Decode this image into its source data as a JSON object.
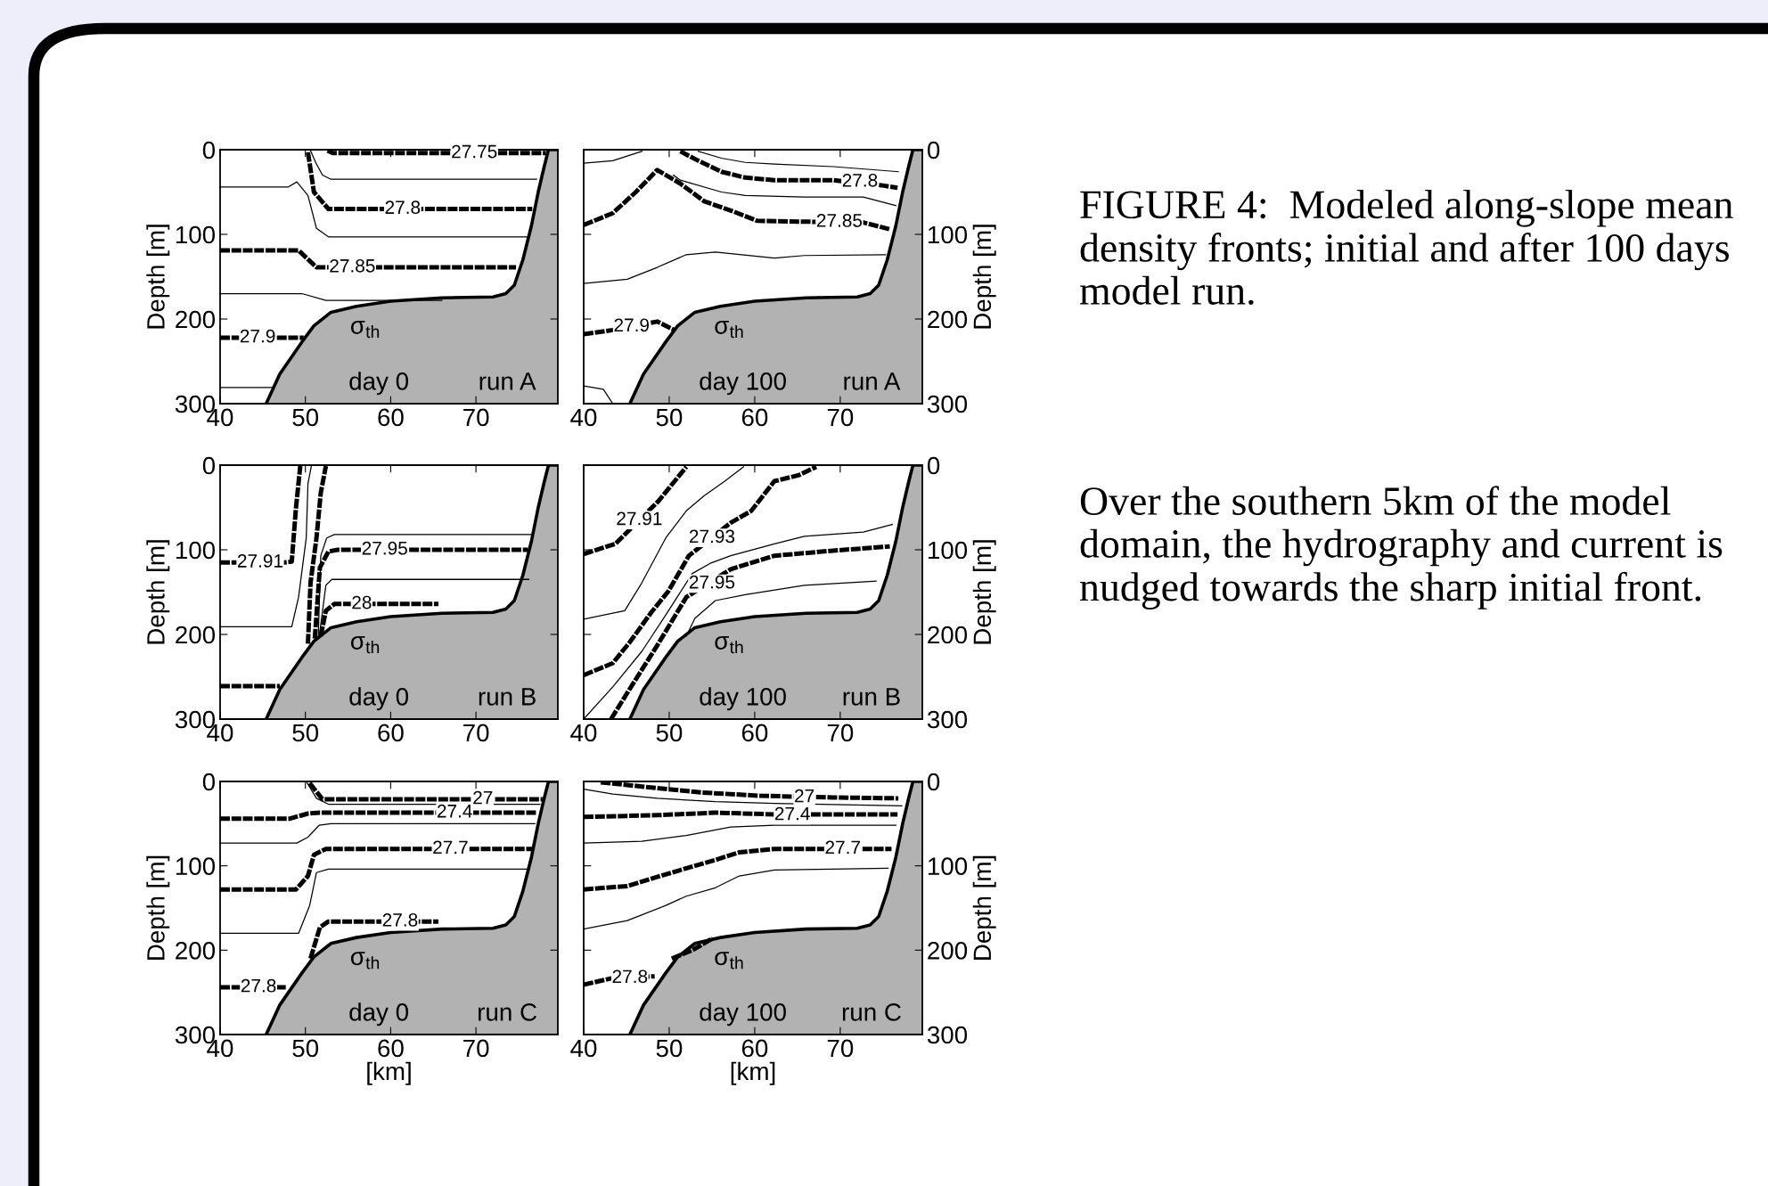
{
  "chart_data": [
    {
      "type": "line",
      "xlim": [
        40,
        79.6
      ],
      "ylim": [
        300,
        0
      ],
      "xticks": [
        40,
        50,
        60,
        70
      ],
      "yticks": [
        0,
        100,
        200,
        300
      ],
      "ylabel": "Depth [m]",
      "series": [
        {
          "color": "#000000",
          "line_style": "solid",
          "x": [
            45.4,
            47,
            49.6,
            51,
            53,
            56,
            60,
            66,
            72,
            73.5,
            74.5,
            75.5,
            76.5,
            77.3,
            78,
            78.5,
            79.6
          ],
          "values": [
            300,
            265,
            227,
            208,
            192,
            185,
            179,
            175,
            174,
            170,
            160,
            130,
            90,
            50,
            20,
            0,
            0
          ],
          "lower": [
            300,
            265,
            227,
            208,
            192,
            185,
            179,
            175,
            174,
            170,
            160,
            130,
            90,
            50,
            20,
            0,
            0
          ],
          "upper": [
            300,
            300,
            300,
            300,
            300,
            300,
            300,
            300,
            300,
            300,
            300,
            300,
            300,
            300,
            300,
            300,
            300
          ]
        },
        {
          "color": "#000000",
          "line_style": "dashed",
          "x": [
            52.6,
            53.2,
            78.2
          ],
          "values": [
            1,
            4,
            4
          ]
        },
        {
          "color": "#000000",
          "line_style": "solid",
          "x": [
            50.6,
            51.2,
            52,
            53,
            77.1
          ],
          "values": [
            1,
            15,
            30,
            35,
            35
          ]
        },
        {
          "color": "#000000",
          "line_style": "dashed",
          "x": [
            50.3,
            51,
            52.7,
            76.6
          ],
          "values": [
            3,
            50,
            70,
            70
          ]
        },
        {
          "color": "#000000",
          "line_style": "solid",
          "x": [
            40,
            48,
            49,
            50.3,
            51.3,
            52.7,
            76.1
          ],
          "values": [
            44,
            44,
            38,
            54,
            93,
            103,
            103
          ]
        },
        {
          "color": "#000000",
          "line_style": "dashed",
          "x": [
            40,
            49.2,
            51.3,
            74.7
          ],
          "values": [
            119,
            119,
            139,
            139
          ]
        },
        {
          "color": "#000000",
          "line_style": "solid",
          "x": [
            40,
            49.6,
            52.4,
            66
          ],
          "values": [
            170,
            170,
            178,
            178
          ]
        },
        {
          "color": "#000000",
          "line_style": "dashed",
          "x": [
            40,
            49.8
          ],
          "values": [
            222,
            222
          ]
        },
        {
          "color": "#000000",
          "line_style": "solid",
          "x": [
            40,
            46.1
          ],
          "values": [
            281,
            281
          ]
        }
      ],
      "annotations": [
        "σ$_{th}$",
        "day 0",
        "run A",
        {
          "text": "27.75",
          "x": 69.8,
          "y": 4
        },
        {
          "text": "27.8",
          "x": 61.4,
          "y": 70
        },
        {
          "text": "27.85",
          "x": 55.5,
          "y": 139
        },
        {
          "text": "27.9",
          "x": 44.4,
          "y": 222
        }
      ]
    },
    {
      "type": "line",
      "xlim": [
        40,
        79.6
      ],
      "ylim": [
        300,
        0
      ],
      "xticks": [
        40,
        50,
        60,
        70
      ],
      "yticks": [
        0,
        100,
        200,
        300
      ],
      "ylabel": "Depth [m]",
      "series": [
        {
          "color": "#000000",
          "line_style": "solid",
          "x": [
            45.4,
            47,
            49.6,
            51,
            53,
            56,
            60,
            66,
            72,
            73.5,
            74.5,
            75.5,
            76.5,
            77.3,
            78,
            78.5,
            79.6
          ],
          "values": [
            300,
            265,
            227,
            208,
            192,
            185,
            179,
            175,
            174,
            170,
            160,
            130,
            90,
            50,
            20,
            0,
            0
          ],
          "lower": [
            300,
            265,
            227,
            208,
            192,
            185,
            179,
            175,
            174,
            170,
            160,
            130,
            90,
            50,
            20,
            0,
            0
          ],
          "upper": [
            300,
            300,
            300,
            300,
            300,
            300,
            300,
            300,
            300,
            300,
            300,
            300,
            300,
            300,
            300,
            300,
            300
          ]
        },
        {
          "color": "#000000",
          "line_style": "solid",
          "x": [
            40,
            43.4,
            46.8
          ],
          "values": [
            16,
            13,
            2
          ]
        },
        {
          "color": "#000000",
          "line_style": "solid",
          "x": [
            53.4,
            56.1,
            58.9,
            62.3,
            69.2,
            76.8
          ],
          "values": [
            2,
            10,
            15,
            17,
            20,
            26
          ]
        },
        {
          "color": "#000000",
          "line_style": "dashed",
          "x": [
            51.3,
            53.4,
            56.1,
            58.9,
            62.3,
            69.2,
            74.8,
            76.7
          ],
          "values": [
            2,
            13,
            26,
            33,
            36,
            36,
            42,
            45
          ]
        },
        {
          "color": "#000000",
          "line_style": "solid",
          "x": [
            50.5,
            51.3,
            56.1,
            58.9,
            65.8,
            72.7,
            76.5
          ],
          "values": [
            30,
            36,
            50,
            54,
            56,
            56,
            66
          ]
        },
        {
          "color": "#000000",
          "line_style": "dashed",
          "x": [
            40,
            43.4,
            46.1,
            48.6,
            51.3,
            54.1,
            57.5,
            60.3,
            65.8,
            72.7,
            75.8
          ],
          "values": [
            89,
            75,
            50,
            24,
            40,
            61,
            73,
            84,
            85,
            86,
            94
          ]
        },
        {
          "color": "#000000",
          "line_style": "solid",
          "x": [
            40,
            45.1,
            48.6,
            52,
            55.4,
            62.3,
            65.8,
            75.3
          ],
          "values": [
            158,
            153,
            139,
            124,
            121,
            128,
            125,
            124
          ]
        },
        {
          "color": "#000000",
          "line_style": "dashed",
          "x": [
            40,
            43.4,
            48.6,
            50.6
          ],
          "values": [
            218,
            213,
            203,
            213
          ]
        },
        {
          "color": "#000000",
          "line_style": "solid",
          "x": [
            40,
            42.3,
            43.4
          ],
          "values": [
            279,
            283,
            300
          ]
        }
      ],
      "annotations": [
        "σ$_{th}$",
        "day 100",
        "run A",
        {
          "text": "27.8",
          "x": 72.3,
          "y": 38
        },
        {
          "text": "27.85",
          "x": 69.9,
          "y": 85.5
        },
        {
          "text": "27.9",
          "x": 45.6,
          "y": 209
        }
      ]
    },
    {
      "type": "line",
      "xlim": [
        40,
        79.6
      ],
      "ylim": [
        300,
        0
      ],
      "xticks": [
        40,
        50,
        60,
        70
      ],
      "yticks": [
        0,
        100,
        200,
        300
      ],
      "ylabel": "Depth [m]",
      "series": [
        {
          "color": "#000000",
          "line_style": "solid",
          "x": [
            45.4,
            47,
            49.6,
            51,
            53,
            56,
            60,
            66,
            72,
            73.5,
            74.5,
            75.5,
            76.5,
            77.3,
            78,
            78.5,
            79.6
          ],
          "values": [
            300,
            265,
            227,
            208,
            192,
            185,
            179,
            175,
            174,
            170,
            160,
            130,
            90,
            50,
            20,
            0,
            0
          ],
          "lower": [
            300,
            265,
            227,
            208,
            192,
            185,
            179,
            175,
            174,
            170,
            160,
            130,
            90,
            50,
            20,
            0,
            0
          ],
          "upper": [
            300,
            300,
            300,
            300,
            300,
            300,
            300,
            300,
            300,
            300,
            300,
            300,
            300,
            300,
            300,
            300,
            300
          ]
        },
        {
          "color": "#000000",
          "line_style": "dashed",
          "x": [
            40,
            47.5,
            48.4,
            48.9,
            49.4
          ],
          "values": [
            115,
            115,
            114,
            50,
            1
          ]
        },
        {
          "color": "#000000",
          "line_style": "solid",
          "x": [
            40,
            48.4,
            49.2,
            50.1,
            50.3,
            50.7
          ],
          "values": [
            191,
            191,
            156,
            86,
            22,
            1
          ]
        },
        {
          "color": "#000000",
          "line_style": "dashed",
          "x": [
            50.3,
            50.6,
            51.3,
            51.8,
            52.4
          ],
          "values": [
            211,
            139,
            86,
            33,
            1
          ]
        },
        {
          "color": "#000000",
          "line_style": "dashed",
          "x": [
            51.1,
            51.7,
            52.7,
            53.8,
            76.1
          ],
          "values": [
            205,
            121,
            102,
            100,
            100
          ]
        },
        {
          "color": "#000000",
          "line_style": "solid",
          "x": [
            51.5,
            51.8,
            52.5,
            53.4,
            76.4
          ],
          "values": [
            205,
            107,
            86,
            82,
            82
          ]
        },
        {
          "color": "#000000",
          "line_style": "solid",
          "x": [
            51.6,
            52.4,
            53.1,
            76.2
          ],
          "values": [
            204,
            142,
            135,
            135
          ]
        },
        {
          "color": "#000000",
          "line_style": "dashed",
          "x": [
            51.8,
            52.4,
            53.4,
            65.6
          ],
          "values": [
            202,
            172,
            164,
            164
          ]
        },
        {
          "color": "#000000",
          "line_style": "dashed",
          "x": [
            40,
            47
          ],
          "values": [
            261,
            261
          ]
        }
      ],
      "annotations": [
        "σ$_{th}$",
        "day 0",
        "run B",
        {
          "text": "27.91",
          "x": 44.7,
          "y": 115
        },
        {
          "text": "27.95",
          "x": 59.3,
          "y": 100
        },
        {
          "text": "28",
          "x": 56.6,
          "y": 164
        }
      ]
    },
    {
      "type": "line",
      "xlim": [
        40,
        79.6
      ],
      "ylim": [
        300,
        0
      ],
      "xticks": [
        40,
        50,
        60,
        70
      ],
      "yticks": [
        0,
        100,
        200,
        300
      ],
      "ylabel": "Depth [m]",
      "series": [
        {
          "color": "#000000",
          "line_style": "solid",
          "x": [
            45.4,
            47,
            49.6,
            51,
            53,
            56,
            60,
            66,
            72,
            73.5,
            74.5,
            75.5,
            76.5,
            77.3,
            78,
            78.5,
            79.6
          ],
          "values": [
            300,
            265,
            227,
            208,
            192,
            185,
            179,
            175,
            174,
            170,
            160,
            130,
            90,
            50,
            20,
            0,
            0
          ],
          "lower": [
            300,
            265,
            227,
            208,
            192,
            185,
            179,
            175,
            174,
            170,
            160,
            130,
            90,
            50,
            20,
            0,
            0
          ],
          "upper": [
            300,
            300,
            300,
            300,
            300,
            300,
            300,
            300,
            300,
            300,
            300,
            300,
            300,
            300,
            300,
            300,
            300
          ]
        },
        {
          "color": "#000000",
          "line_style": "dashed",
          "x": [
            40,
            43.7,
            48.7,
            52
          ],
          "values": [
            105,
            93,
            43,
            2
          ]
        },
        {
          "color": "#000000",
          "line_style": "solid",
          "x": [
            40,
            44.8,
            46.8,
            49.6,
            52,
            54.1,
            56.5,
            58.7
          ],
          "values": [
            182,
            172,
            139,
            86,
            54,
            36,
            19,
            2
          ]
        },
        {
          "color": "#000000",
          "line_style": "dashed",
          "x": [
            40,
            43.4,
            45.4,
            47.9,
            49.9,
            52.3,
            57.2,
            59.6,
            62.3,
            65.1,
            67.2
          ],
          "values": [
            248,
            234,
            209,
            174,
            149,
            107,
            68,
            54,
            19,
            12,
            2
          ]
        },
        {
          "color": "#000000",
          "line_style": "solid",
          "x": [
            40,
            43.4,
            46.8,
            49.6,
            52.7,
            54.8,
            57.2,
            62.3,
            65.8,
            72.7,
            76.1
          ],
          "values": [
            300,
            262,
            220,
            177,
            128,
            116,
            107,
            93,
            84,
            79,
            70
          ]
        },
        {
          "color": "#000000",
          "line_style": "dashed",
          "x": [
            43.2,
            45.1,
            48.6,
            52,
            57.2,
            62.3,
            69.2,
            75.8
          ],
          "values": [
            300,
            269,
            213,
            156,
            123,
            107,
            101,
            96
          ]
        },
        {
          "color": "#000000",
          "line_style": "solid",
          "x": [
            52,
            53,
            55.4,
            58.9,
            65.8,
            74.2
          ],
          "values": [
            202,
            181,
            160,
            153,
            142,
            137
          ]
        }
      ],
      "annotations": [
        "σ$_{th}$",
        "day 100",
        "run B",
        {
          "text": "27.91",
          "x": 46.5,
          "y": 65
        },
        {
          "text": "27.93",
          "x": 55,
          "y": 86
        },
        {
          "text": "27.95",
          "x": 55,
          "y": 140
        }
      ]
    },
    {
      "type": "line",
      "xlim": [
        40,
        79.6
      ],
      "ylim": [
        300,
        0
      ],
      "xticks": [
        40,
        50,
        60,
        70
      ],
      "yticks": [
        0,
        100,
        200,
        300
      ],
      "ylabel": "Depth [m]",
      "xlabel": "[km]",
      "series": [
        {
          "color": "#000000",
          "line_style": "solid",
          "x": [
            45.4,
            47,
            49.6,
            51,
            53,
            56,
            60,
            66,
            72,
            73.5,
            74.5,
            75.5,
            76.5,
            77.3,
            78,
            78.5,
            79.6
          ],
          "values": [
            300,
            265,
            227,
            208,
            192,
            185,
            179,
            175,
            174,
            170,
            160,
            130,
            90,
            50,
            20,
            0,
            0
          ],
          "lower": [
            300,
            265,
            227,
            208,
            192,
            185,
            179,
            175,
            174,
            170,
            160,
            130,
            90,
            50,
            20,
            0,
            0
          ],
          "upper": [
            300,
            300,
            300,
            300,
            300,
            300,
            300,
            300,
            300,
            300,
            300,
            300,
            300,
            300,
            300,
            300,
            300
          ]
        },
        {
          "color": "#000000",
          "line_style": "solid",
          "x": [
            50.1,
            51.3,
            52.7,
            77.5
          ],
          "values": [
            0,
            20,
            27,
            27
          ]
        },
        {
          "color": "#000000",
          "line_style": "dashed",
          "x": [
            50.5,
            52,
            77.8
          ],
          "values": [
            2,
            21,
            21
          ]
        },
        {
          "color": "#000000",
          "line_style": "dashed",
          "x": [
            40,
            48.2,
            50.3,
            51.7,
            77.1
          ],
          "values": [
            44,
            44,
            38,
            37,
            37
          ]
        },
        {
          "color": "#000000",
          "line_style": "solid",
          "x": [
            40,
            49,
            50.3,
            51.6,
            53,
            76.9
          ],
          "values": [
            73,
            73,
            66,
            52,
            50,
            50
          ]
        },
        {
          "color": "#000000",
          "line_style": "dashed",
          "x": [
            40,
            48.9,
            50.3,
            51,
            52.4,
            76.6
          ],
          "values": [
            128,
            128,
            112,
            87,
            80,
            80
          ]
        },
        {
          "color": "#000000",
          "line_style": "solid",
          "x": [
            40,
            49.2,
            50.5,
            51.3,
            52.7,
            76.1
          ],
          "values": [
            180,
            180,
            147,
            108,
            104,
            104
          ]
        },
        {
          "color": "#000000",
          "line_style": "dashed",
          "x": [
            50.6,
            51.7,
            52.7,
            65.6
          ],
          "values": [
            210,
            173,
            166,
            166
          ]
        },
        {
          "color": "#000000",
          "line_style": "dashed",
          "x": [
            40,
            47.7
          ],
          "values": [
            244,
            244
          ]
        }
      ],
      "annotations": [
        "σ$_{th}$",
        "day 0",
        "run C",
        {
          "text": "27",
          "x": 70.8,
          "y": 21
        },
        {
          "text": "27.4",
          "x": 67.5,
          "y": 37
        },
        {
          "text": "27.7",
          "x": 67,
          "y": 80
        },
        {
          "text": "27.8",
          "x": 61.1,
          "y": 166
        },
        {
          "text": "27.8",
          "x": 44.5,
          "y": 244
        }
      ]
    },
    {
      "type": "line",
      "xlim": [
        40,
        79.6
      ],
      "ylim": [
        300,
        0
      ],
      "xticks": [
        40,
        50,
        60,
        70
      ],
      "yticks": [
        0,
        100,
        200,
        300
      ],
      "ylabel": "Depth [m]",
      "xlabel": "[km]",
      "series": [
        {
          "color": "#000000",
          "line_style": "solid",
          "x": [
            45.4,
            47,
            49.6,
            51,
            53,
            56,
            60,
            66,
            72,
            73.5,
            74.5,
            75.5,
            76.5,
            77.3,
            78,
            78.5,
            79.6
          ],
          "values": [
            300,
            265,
            227,
            208,
            192,
            185,
            179,
            175,
            174,
            170,
            160,
            130,
            90,
            50,
            20,
            0,
            0
          ],
          "lower": [
            300,
            265,
            227,
            208,
            192,
            185,
            179,
            175,
            174,
            170,
            160,
            130,
            90,
            50,
            20,
            0,
            0
          ],
          "upper": [
            300,
            300,
            300,
            300,
            300,
            300,
            300,
            300,
            300,
            300,
            300,
            300,
            300,
            300,
            300,
            300,
            300
          ]
        },
        {
          "color": "#000000",
          "line_style": "solid",
          "x": [
            40,
            43.4,
            48.6,
            55.4,
            62.3,
            77.2
          ],
          "values": [
            9,
            15,
            20,
            24,
            26,
            29
          ]
        },
        {
          "color": "#000000",
          "line_style": "dashed",
          "x": [
            42,
            46.8,
            53.7,
            60.6,
            69.2,
            76.8
          ],
          "values": [
            1,
            6,
            13,
            17,
            19,
            20
          ]
        },
        {
          "color": "#000000",
          "line_style": "dashed",
          "x": [
            40,
            48.6,
            55.4,
            62.3,
            76.7
          ],
          "values": [
            42,
            40,
            37,
            39,
            39
          ]
        },
        {
          "color": "#000000",
          "line_style": "solid",
          "x": [
            40,
            46.8,
            52,
            57.2,
            62.3,
            76.5
          ],
          "values": [
            73,
            71,
            64,
            54,
            52,
            52
          ]
        },
        {
          "color": "#000000",
          "line_style": "dashed",
          "x": [
            40,
            45.1,
            50.3,
            55.4,
            58.2,
            62.3,
            76
          ],
          "values": [
            128,
            124,
            108,
            93,
            84,
            80,
            80
          ]
        },
        {
          "color": "#000000",
          "line_style": "solid",
          "x": [
            40,
            45.1,
            49.6,
            52,
            55.4,
            58.2,
            62.3,
            75.6
          ],
          "values": [
            175,
            165,
            147,
            136,
            126,
            112,
            105,
            103
          ]
        },
        {
          "color": "#000000",
          "line_style": "dashed",
          "x": [
            40,
            43.4,
            48.3
          ],
          "values": [
            241,
            233,
            231
          ]
        },
        {
          "color": "#000000",
          "line_style": "dashed",
          "x": [
            50.3,
            52.7,
            55.1
          ],
          "values": [
            210,
            200,
            186
          ]
        }
      ],
      "annotations": [
        "σ$_{th}$",
        "day 100",
        "run C",
        {
          "text": "27",
          "x": 65.8,
          "y": 19
        },
        {
          "text": "27.4",
          "x": 64.4,
          "y": 40
        },
        {
          "text": "27.7",
          "x": 70.3,
          "y": 80
        },
        {
          "text": "27.8",
          "x": 45.4,
          "y": 233
        }
      ]
    },
    {
      "type": "other",
      "annotations": [
        "FIGURE 4:  Modeled along-slope mean density fronts; initial and after 100 days model run.",
        "Over the southern 5km of the model domain, the hydrography and current is nudged towards the sharp initial front."
      ]
    }
  ]
}
